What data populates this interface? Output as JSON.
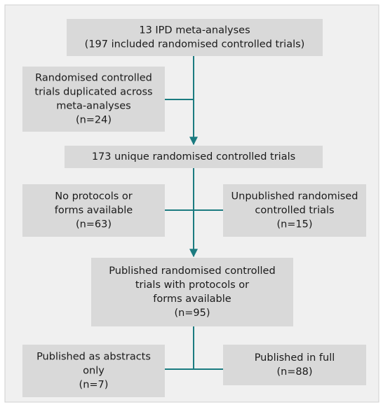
{
  "nodes": [
    {
      "lines": [
        "13 IPD meta-analyses",
        "(197 included randomised controlled trials)"
      ]
    },
    {
      "lines": [
        "Randomised controlled",
        "trials duplicated across",
        "meta-analyses",
        "(n=24)"
      ]
    },
    {
      "lines": [
        "173 unique randomised controlled trials"
      ]
    },
    {
      "lines": [
        "No protocols or",
        "forms available",
        "(n=63)"
      ]
    },
    {
      "lines": [
        "Unpublished randomised",
        "controlled trials",
        "(n=15)"
      ]
    },
    {
      "lines": [
        "Published randomised controlled",
        "trials with protocols or",
        "forms available",
        "(n=95)"
      ]
    },
    {
      "lines": [
        "Published as abstracts",
        "only",
        "(n=7)"
      ]
    },
    {
      "lines": [
        "Published in full",
        "(n=88)"
      ]
    }
  ]
}
